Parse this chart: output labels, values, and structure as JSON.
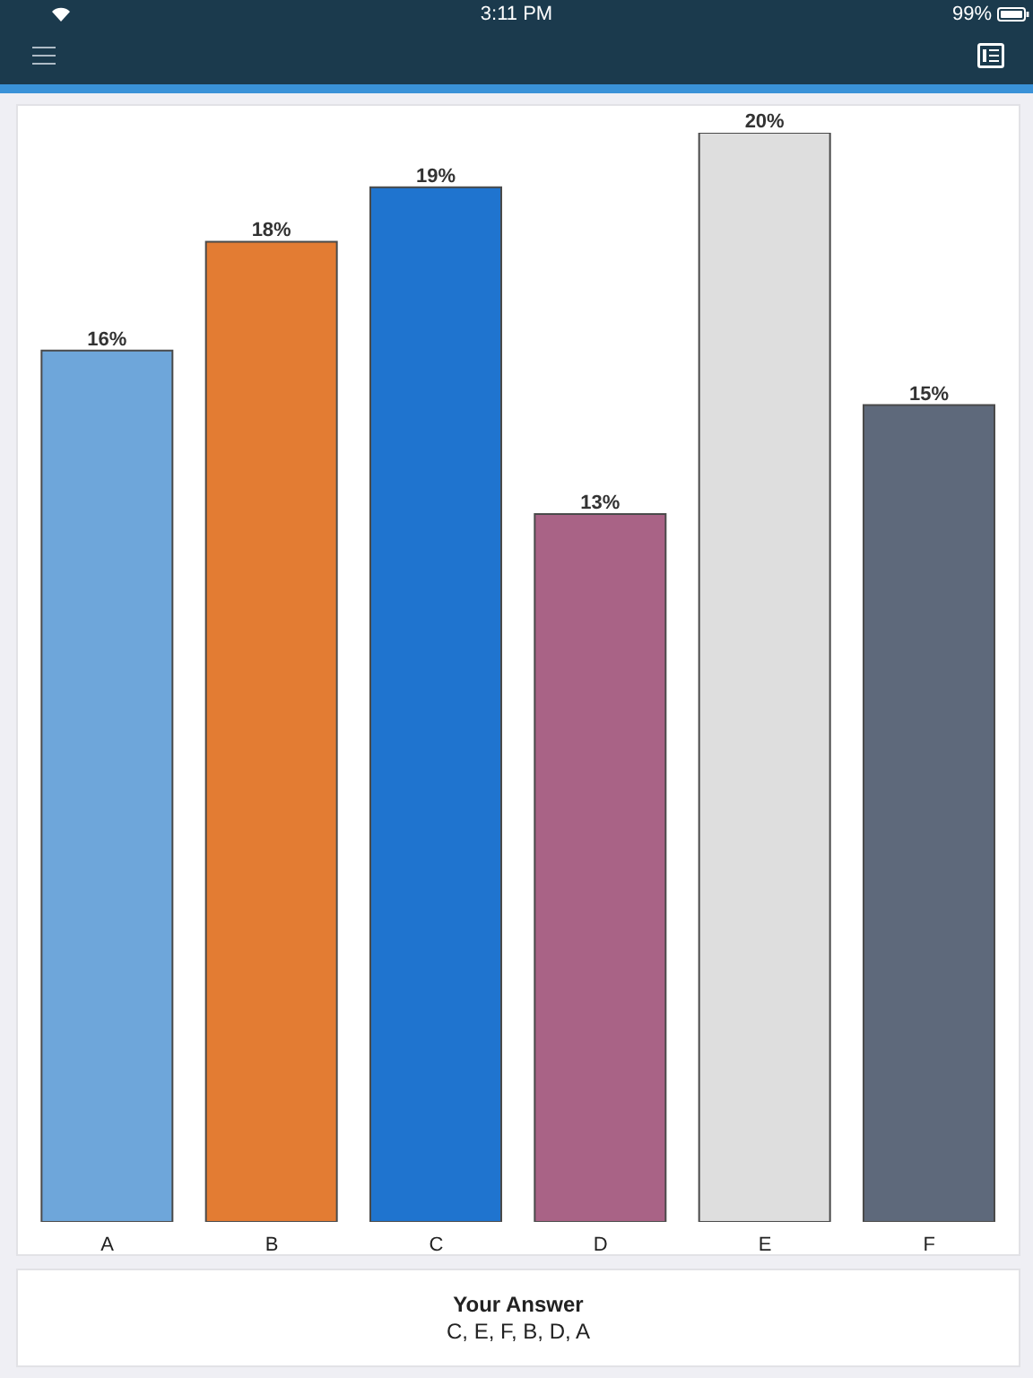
{
  "chart_data": {
    "type": "bar",
    "categories": [
      "A",
      "B",
      "C",
      "D",
      "E",
      "F"
    ],
    "values": [
      16,
      18,
      19,
      13,
      20,
      15
    ],
    "value_labels": [
      "16%",
      "18%",
      "19%",
      "13%",
      "20%",
      "15%"
    ],
    "colors": [
      "#6ea6da",
      "#e37c33",
      "#1f74cf",
      "#a96386",
      "#dedede",
      "#5e697b"
    ],
    "annotations": [
      "3:11 PM",
      "99%",
      "Your Answer",
      "C, E, F, B, D, A"
    ]
  }
}
